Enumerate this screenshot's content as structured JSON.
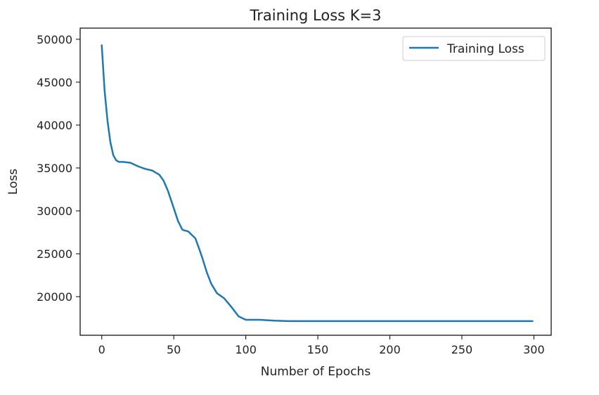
{
  "chart_data": {
    "type": "line",
    "title": "Training Loss K=3",
    "xlabel": "Number of Epochs",
    "ylabel": "Loss",
    "xlim": [
      -15,
      312
    ],
    "ylim": [
      15500,
      51300
    ],
    "xticks": [
      0,
      50,
      100,
      150,
      200,
      250,
      300
    ],
    "yticks": [
      20000,
      25000,
      30000,
      35000,
      40000,
      45000,
      50000
    ],
    "grid": false,
    "legend_position": "upper right",
    "series": [
      {
        "name": "Training Loss",
        "color": "#1f77b4",
        "x": [
          0,
          2,
          4,
          6,
          8,
          10,
          12,
          15,
          20,
          25,
          30,
          35,
          40,
          43,
          46,
          50,
          53,
          56,
          60,
          65,
          68,
          70,
          73,
          76,
          80,
          85,
          90,
          95,
          100,
          105,
          110,
          120,
          130,
          150,
          200,
          250,
          299
        ],
        "y": [
          49300,
          44000,
          40500,
          38000,
          36500,
          35900,
          35700,
          35700,
          35600,
          35200,
          34900,
          34700,
          34200,
          33500,
          32300,
          30300,
          28800,
          27800,
          27600,
          26800,
          25400,
          24400,
          22800,
          21500,
          20400,
          19800,
          18800,
          17700,
          17300,
          17300,
          17300,
          17200,
          17150,
          17150,
          17150,
          17150,
          17150
        ]
      }
    ]
  }
}
